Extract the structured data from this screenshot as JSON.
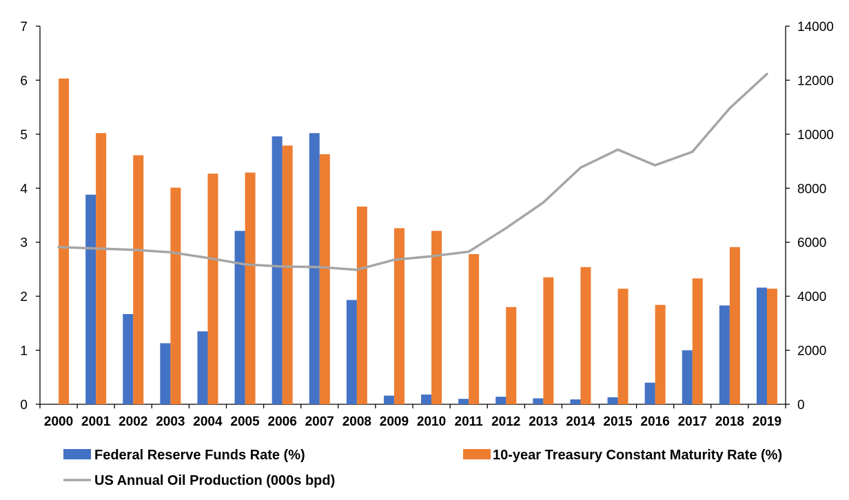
{
  "chart_data": {
    "type": "bar",
    "title": "",
    "xlabel": "",
    "ylabel": "",
    "ylabel_right": "",
    "categories": [
      "2000",
      "2001",
      "2002",
      "2003",
      "2004",
      "2005",
      "2006",
      "2007",
      "2008",
      "2009",
      "2010",
      "2011",
      "2012",
      "2013",
      "2014",
      "2015",
      "2016",
      "2017",
      "2018",
      "2019"
    ],
    "ylim": [
      0,
      7
    ],
    "yticks": [
      0,
      1,
      2,
      3,
      4,
      5,
      6,
      7
    ],
    "ylim_right": [
      0,
      14000
    ],
    "yticks_right": [
      0,
      2000,
      4000,
      6000,
      8000,
      10000,
      12000,
      14000
    ],
    "grid": false,
    "legend_position": "bottom",
    "series": [
      {
        "name": "Federal Reserve Funds Rate (%)",
        "kind": "bar",
        "axis": "left",
        "color": "#4472C4",
        "values": [
          null,
          3.88,
          1.67,
          1.13,
          1.35,
          3.21,
          4.96,
          5.02,
          1.93,
          0.16,
          0.18,
          0.1,
          0.14,
          0.11,
          0.09,
          0.13,
          0.4,
          1.0,
          1.83,
          2.16
        ]
      },
      {
        "name": "10-year Treasury Constant Maturity Rate (%)",
        "kind": "bar",
        "axis": "left",
        "color": "#ED7D31",
        "values": [
          6.03,
          5.02,
          4.61,
          4.01,
          4.27,
          4.29,
          4.79,
          4.63,
          3.66,
          3.26,
          3.21,
          2.78,
          1.8,
          2.35,
          2.54,
          2.14,
          1.84,
          2.33,
          2.91,
          2.14
        ]
      },
      {
        "name": "US Annual Oil Production (000s bpd)",
        "kind": "line",
        "axis": "right",
        "color": "#A5A5A5",
        "values": [
          5820,
          5770,
          5720,
          5630,
          5420,
          5180,
          5100,
          5080,
          4980,
          5350,
          5480,
          5650,
          6520,
          7470,
          8760,
          9430,
          8850,
          9350,
          10960,
          12230
        ]
      }
    ]
  }
}
